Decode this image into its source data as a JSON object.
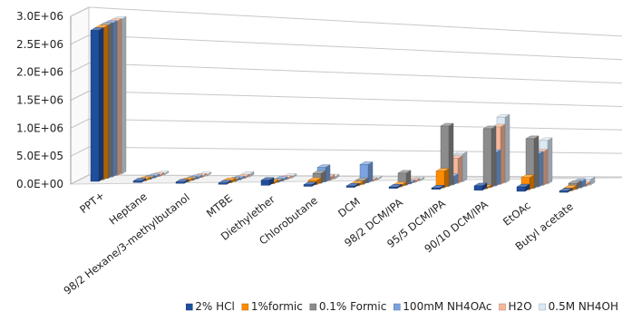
{
  "chart_data": {
    "type": "bar",
    "style": "3d-clustered-column",
    "categories": [
      "PPT+",
      "Heptane",
      "98/2 Hexane/3-methylbutanol",
      "MTBE",
      "Diethylether",
      "Chlorobutane",
      "DCM",
      "98/2 DCM/IPA",
      "95/5 DCM/IPA",
      "90/10 DCM/IPA",
      "EtOAc",
      "Butyl acetate"
    ],
    "series": [
      {
        "name": "2% HCl",
        "color": "#1f4e9c",
        "values": [
          2700000,
          5000,
          5000,
          5000,
          90000,
          30000,
          0,
          5000,
          0,
          80000,
          80000,
          0
        ]
      },
      {
        "name": "1%formic",
        "color": "#ff8c00",
        "values": [
          2720000,
          5000,
          5000,
          40000,
          30000,
          80000,
          40000,
          40000,
          300000,
          10000,
          220000,
          50000
        ]
      },
      {
        "name": "0.1% Formic",
        "color": "#8c8c8c",
        "values": [
          2740000,
          5000,
          5000,
          20000,
          20000,
          180000,
          70000,
          220000,
          1080000,
          1050000,
          890000,
          110000
        ]
      },
      {
        "name": "100mM NH4OAc",
        "color": "#7aa3e0",
        "values": [
          2750000,
          5000,
          5000,
          10000,
          30000,
          260000,
          330000,
          20000,
          150000,
          600000,
          590000,
          110000
        ]
      },
      {
        "name": "H2O",
        "color": "#f7b89a",
        "values": [
          2760000,
          5000,
          5000,
          30000,
          20000,
          60000,
          20000,
          30000,
          450000,
          1030000,
          600000,
          40000
        ]
      },
      {
        "name": "0.5M NH4OH",
        "color": "#dce9f5",
        "values": [
          2770000,
          5000,
          5000,
          50000,
          30000,
          40000,
          20000,
          20000,
          500000,
          1180000,
          780000,
          100000
        ]
      }
    ],
    "y_ticks": [
      "0.0E+00",
      "5.0E+05",
      "1.0E+06",
      "1.5E+06",
      "2.0E+06",
      "2.5E+06",
      "3.0E+06"
    ],
    "ylim": [
      0,
      3000000
    ],
    "grid": true,
    "legend_position": "bottom"
  }
}
